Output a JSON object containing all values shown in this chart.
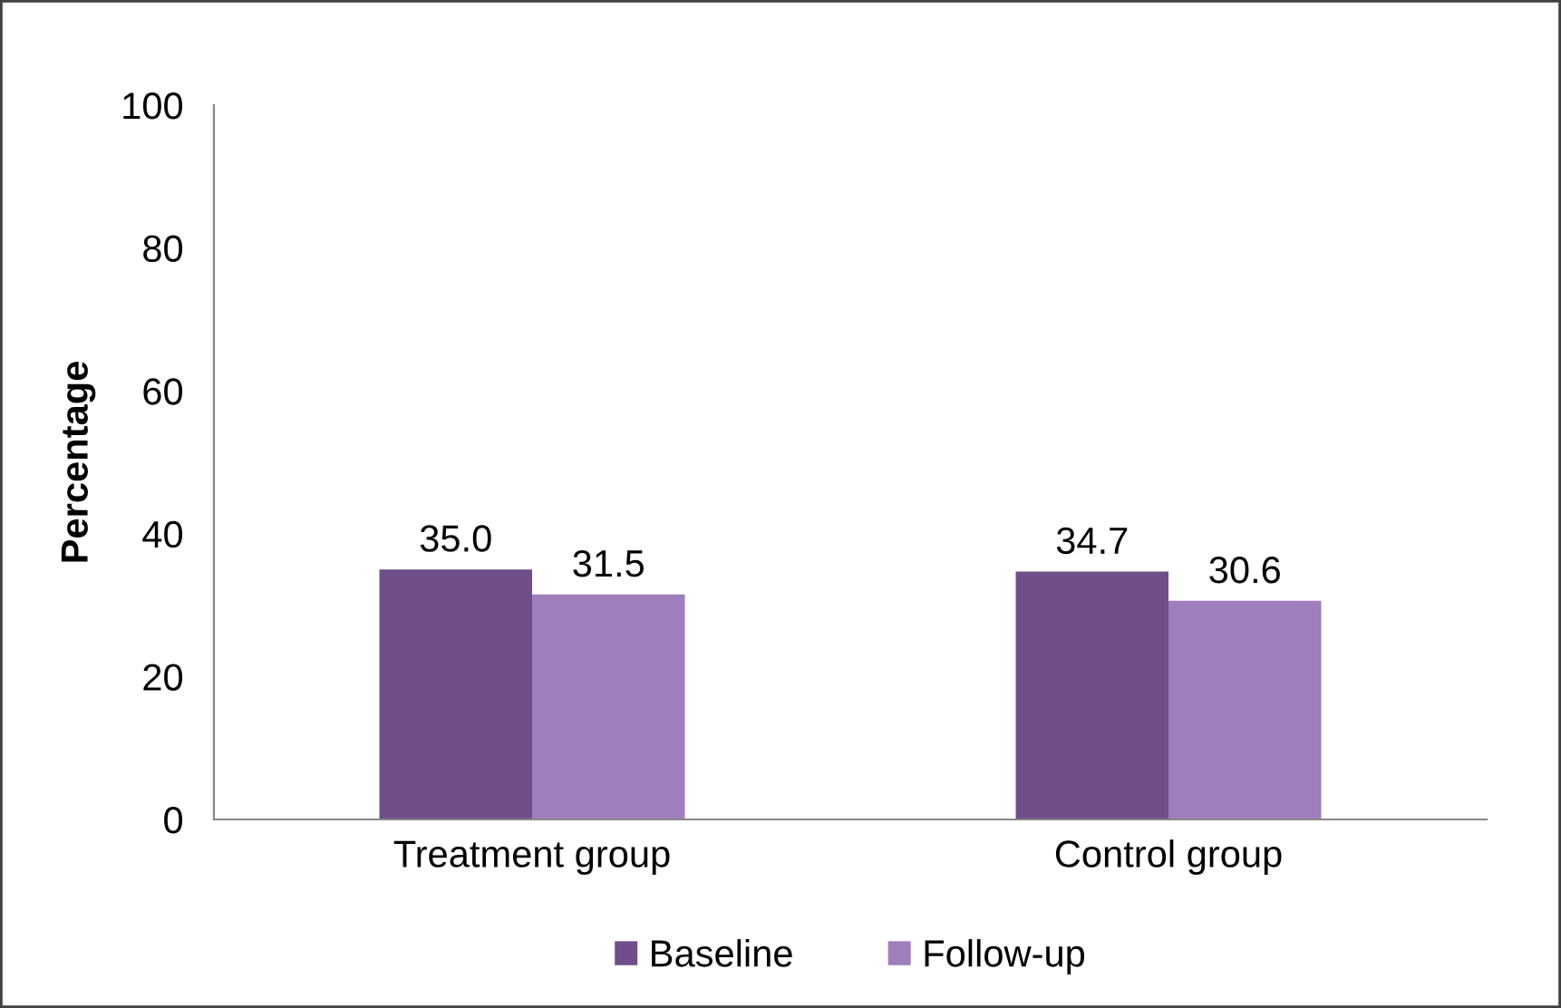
{
  "chart_data": {
    "type": "bar",
    "ylabel": "Percentage",
    "categories": [
      "Treatment group",
      "Control group"
    ],
    "series": [
      {
        "name": "Baseline",
        "color": "#6f4e8a",
        "values": [
          35.0,
          34.7
        ],
        "value_labels": [
          "35.0",
          "34.7"
        ]
      },
      {
        "name": "Follow-up",
        "color": "#9e7ebb",
        "values": [
          31.5,
          30.6
        ],
        "value_labels": [
          "31.5",
          "30.6"
        ]
      }
    ],
    "ylim": [
      0,
      100
    ],
    "yticks": [
      0,
      20,
      40,
      60,
      80,
      100
    ],
    "grid": false,
    "legend": "bottom"
  }
}
